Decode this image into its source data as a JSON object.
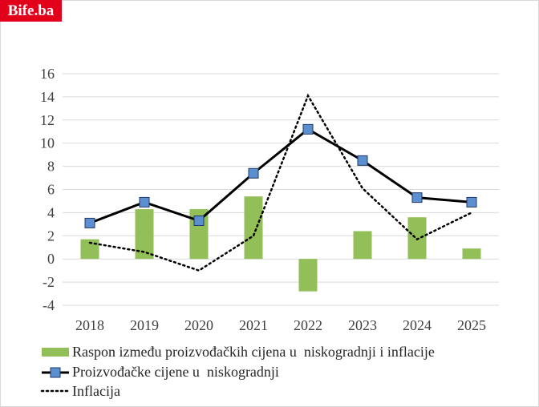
{
  "brand": {
    "logo_text": "Bife.ba",
    "logo_color": "#e3001b"
  },
  "chart_data": {
    "type": "bar",
    "title": "",
    "xlabel": "",
    "ylabel": "",
    "categories": [
      "2018",
      "2019",
      "2020",
      "2021",
      "2022",
      "2023",
      "2024",
      "2025"
    ],
    "ylim": [
      -4,
      16
    ],
    "yticks": [
      16,
      14,
      12,
      10,
      8,
      6,
      4,
      2,
      0,
      -2,
      -4
    ],
    "grid": true,
    "legend_position": "bottom",
    "series": [
      {
        "name": "Raspon između proizvođačkih cijena u  niskogradnji i inflacije",
        "type": "bar",
        "color": "#92bf57",
        "values": [
          1.7,
          4.3,
          4.3,
          5.4,
          -2.8,
          2.4,
          3.6,
          0.9
        ]
      },
      {
        "name": "Proizvođačke cijene u  niskogradnji",
        "type": "line",
        "color": "#000000",
        "marker_color": "#5b8fd0",
        "values": [
          3.1,
          4.9,
          3.3,
          7.4,
          11.2,
          8.5,
          5.3,
          4.9
        ]
      },
      {
        "name": "Inflacija",
        "type": "dotted-line",
        "color": "#000000",
        "values": [
          1.4,
          0.6,
          -1.0,
          2.0,
          14.1,
          6.1,
          1.7,
          4.0
        ]
      }
    ]
  }
}
